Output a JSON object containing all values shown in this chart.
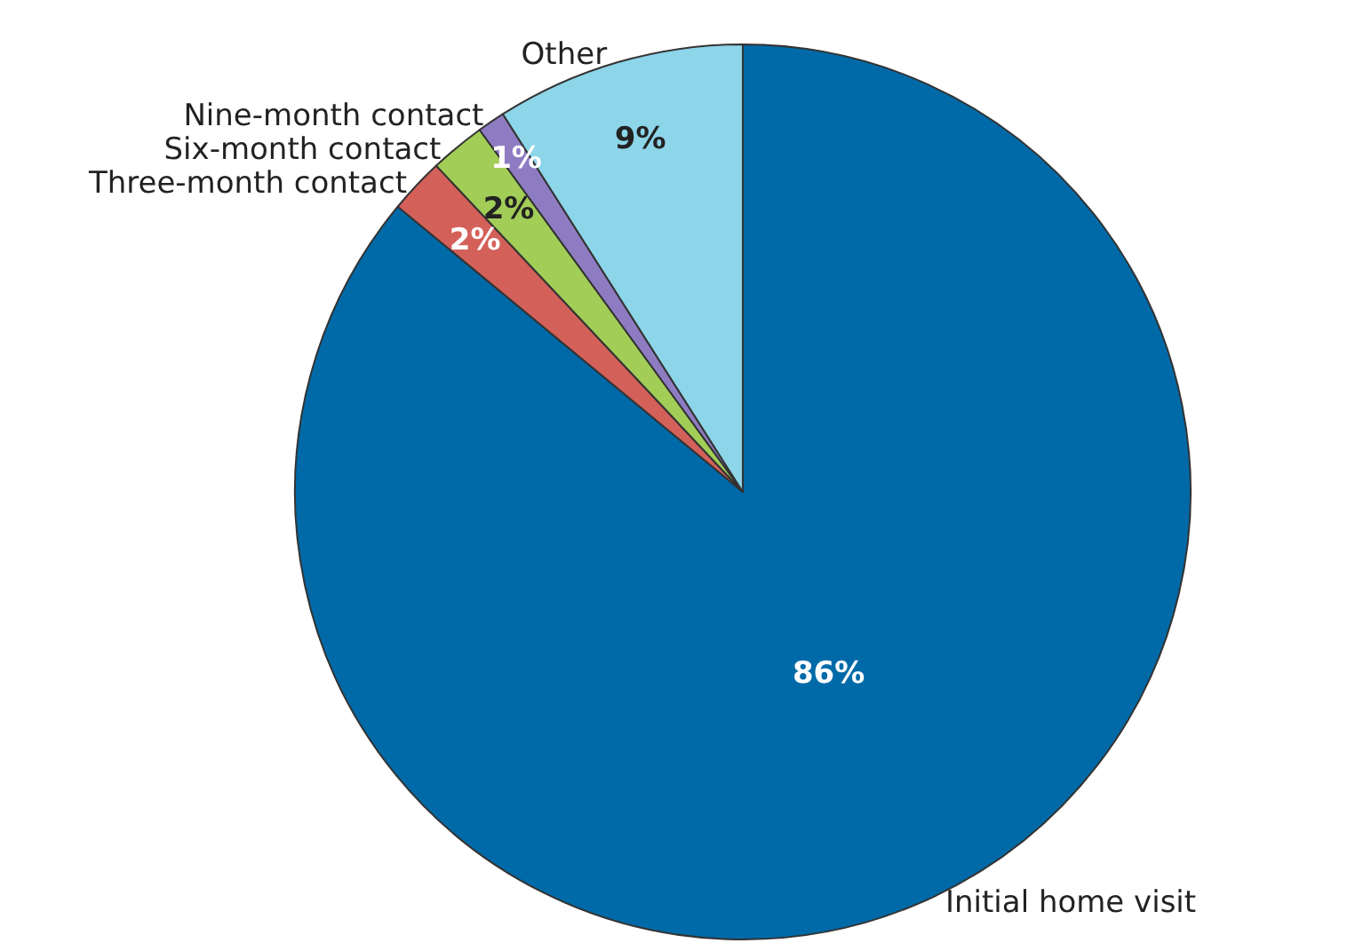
{
  "chart_data": {
    "type": "pie",
    "categories": [
      "Initial home visit",
      "Three-month contact",
      "Six-month contact",
      "Nine-month contact",
      "Other"
    ],
    "values": [
      86,
      2,
      2,
      1,
      9
    ],
    "colors": [
      "#006aa8",
      "#d4605a",
      "#a2cd57",
      "#8e7cc3",
      "#8dd5e9"
    ],
    "value_labels": [
      "86%",
      "2%",
      "2%",
      "1%",
      "9%"
    ]
  }
}
